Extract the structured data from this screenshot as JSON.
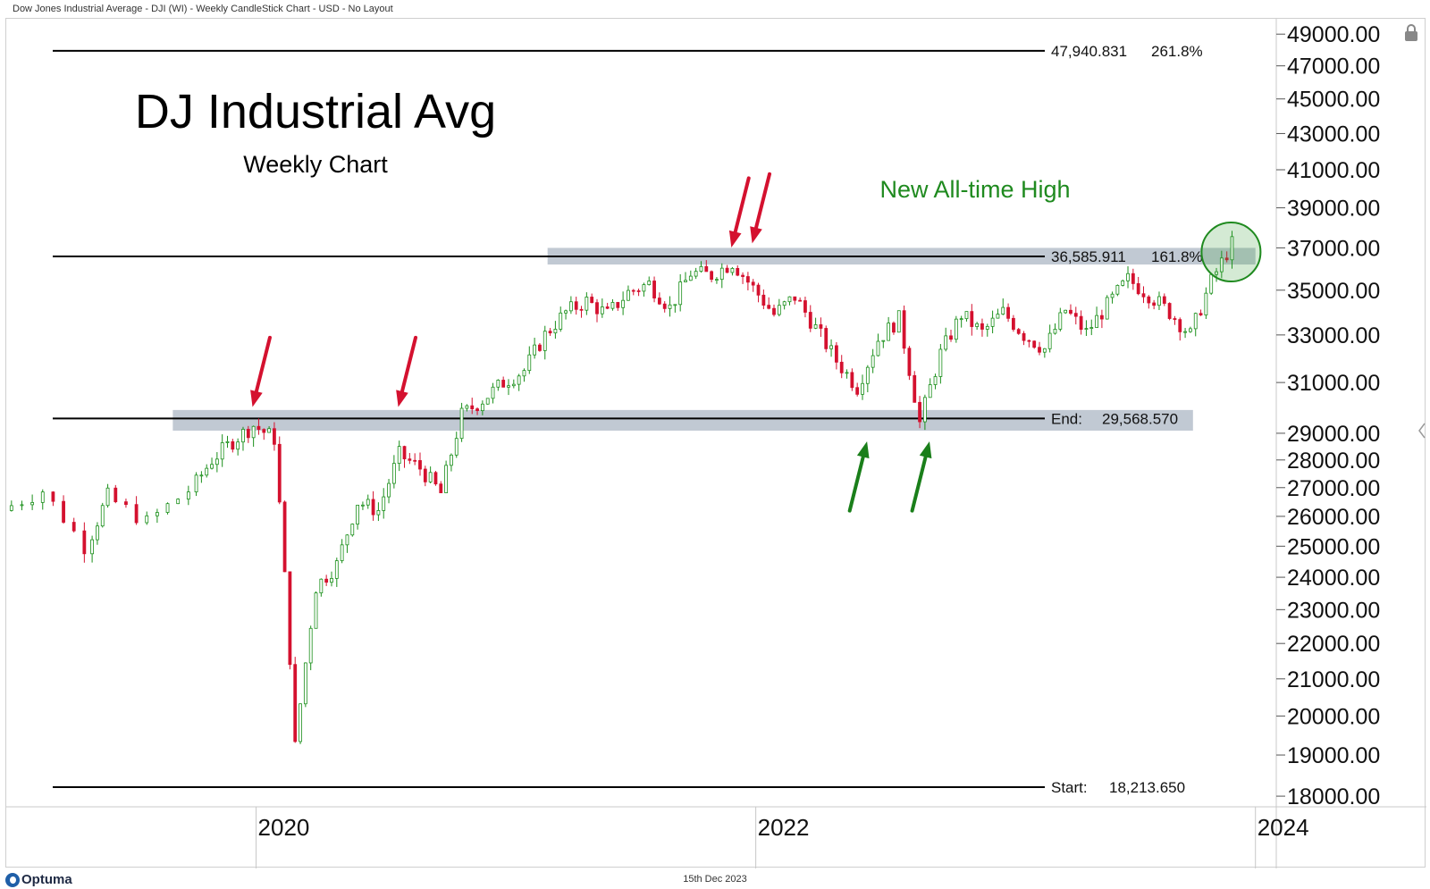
{
  "header": {
    "title": "Dow Jones Industrial Average - DJI (WI) - Weekly CandleStick Chart - USD - No Layout"
  },
  "footer": {
    "brand": "Optuma",
    "date": "15th Dec 2023"
  },
  "colors": {
    "up": "#1a8f1a",
    "down": "#d4112f",
    "zone": "#b6bfcb",
    "note": "#1f8a1f",
    "arrow_red": "#d4112f",
    "arrow_green": "#1a7f1a"
  },
  "icons": {
    "lock": "lock-icon",
    "logo": "optuma-logo-icon"
  },
  "chart_data": {
    "type": "candlestick",
    "title": "DJ Industrial Avg",
    "subtitle": "Weekly Chart",
    "annotation": "New All-time High",
    "y_axis": {
      "ticks": [
        "49000.00",
        "47000.00",
        "45000.00",
        "43000.00",
        "41000.00",
        "39000.00",
        "37000.00",
        "35000.00",
        "33000.00",
        "31000.00",
        "29000.00",
        "28000.00",
        "27000.00",
        "26000.00",
        "25000.00",
        "24000.00",
        "23000.00",
        "22000.00",
        "21000.00",
        "20000.00",
        "19000.00",
        "18000.00"
      ],
      "scale": "log",
      "range": [
        18000,
        49000
      ]
    },
    "x_axis": {
      "ticks": [
        "2020",
        "2022",
        "2024"
      ],
      "range": [
        "2019-01",
        "2024-02"
      ]
    },
    "levels": [
      {
        "name": "top",
        "value_text": "47,940.831",
        "pct": "261.8%",
        "value": 47940.831
      },
      {
        "name": "mid",
        "value_text": "36,585.911",
        "pct": "161.8%",
        "value": 36585.911
      },
      {
        "name": "end",
        "label": "End:",
        "value_text": "29,568.570",
        "value": 29568.57
      },
      {
        "name": "start",
        "label": "Start:",
        "value_text": "18,213.650",
        "value": 18213.65
      }
    ],
    "zones": [
      {
        "from": "2019-09",
        "to": "2023-10",
        "low": 29100,
        "high": 29900
      },
      {
        "from": "2021-03",
        "to": "2024-01",
        "low": 36200,
        "high": 37000
      }
    ],
    "series": [
      {
        "values": [
          [
            "2019-01",
            26200
          ],
          [
            "2019-03",
            26900
          ],
          [
            "2019-05",
            25000
          ],
          [
            "2019-06",
            26700
          ],
          [
            "2019-08",
            25800
          ],
          [
            "2019-10",
            26900
          ],
          [
            "2019-11",
            28000
          ],
          [
            "2019-12",
            28700
          ],
          [
            "2020-01",
            29300
          ],
          [
            "2020-02",
            28800
          ],
          [
            "2020-03",
            19200
          ],
          [
            "2020-04",
            23700
          ],
          [
            "2020-05",
            24400
          ],
          [
            "2020-06",
            26500
          ],
          [
            "2020-07",
            26200
          ],
          [
            "2020-08",
            28200
          ],
          [
            "2020-09",
            27700
          ],
          [
            "2020-10",
            26800
          ],
          [
            "2020-11",
            29700
          ],
          [
            "2020-12",
            30300
          ],
          [
            "2021-01",
            31000
          ],
          [
            "2021-02",
            31500
          ],
          [
            "2021-03",
            33000
          ],
          [
            "2021-04",
            34000
          ],
          [
            "2021-05",
            34500
          ],
          [
            "2021-06",
            33900
          ],
          [
            "2021-07",
            34900
          ],
          [
            "2021-08",
            35300
          ],
          [
            "2021-09",
            34200
          ],
          [
            "2021-10",
            35800
          ],
          [
            "2021-11",
            35700
          ],
          [
            "2021-12",
            36300
          ],
          [
            "2022-01",
            35100
          ],
          [
            "2022-02",
            33900
          ],
          [
            "2022-03",
            34700
          ],
          [
            "2022-04",
            33300
          ],
          [
            "2022-05",
            31900
          ],
          [
            "2022-06",
            30800
          ],
          [
            "2022-07",
            32800
          ],
          [
            "2022-08",
            33700
          ],
          [
            "2022-09",
            29400
          ],
          [
            "2022-10",
            32200
          ],
          [
            "2022-11",
            33900
          ],
          [
            "2022-12",
            33100
          ],
          [
            "2023-01",
            34000
          ],
          [
            "2023-02",
            33000
          ],
          [
            "2023-03",
            32400
          ],
          [
            "2023-04",
            34100
          ],
          [
            "2023-05",
            33100
          ],
          [
            "2023-06",
            34300
          ],
          [
            "2023-07",
            35500
          ],
          [
            "2023-08",
            34800
          ],
          [
            "2023-09",
            34000
          ],
          [
            "2023-10",
            33000
          ],
          [
            "2023-11",
            35400
          ],
          [
            "2023-12",
            37200
          ]
        ]
      }
    ],
    "markers": {
      "red_arrows_at": [
        [
          "2020-01",
          29600
        ],
        [
          "2020-08",
          29600
        ],
        [
          "2021-12",
          36500
        ],
        [
          "2022-01",
          36700
        ]
      ],
      "green_arrows_at": [
        [
          "2022-06",
          29100
        ],
        [
          "2022-09",
          29100
        ]
      ],
      "circle_at": [
        "2023-12",
        36800
      ]
    }
  }
}
